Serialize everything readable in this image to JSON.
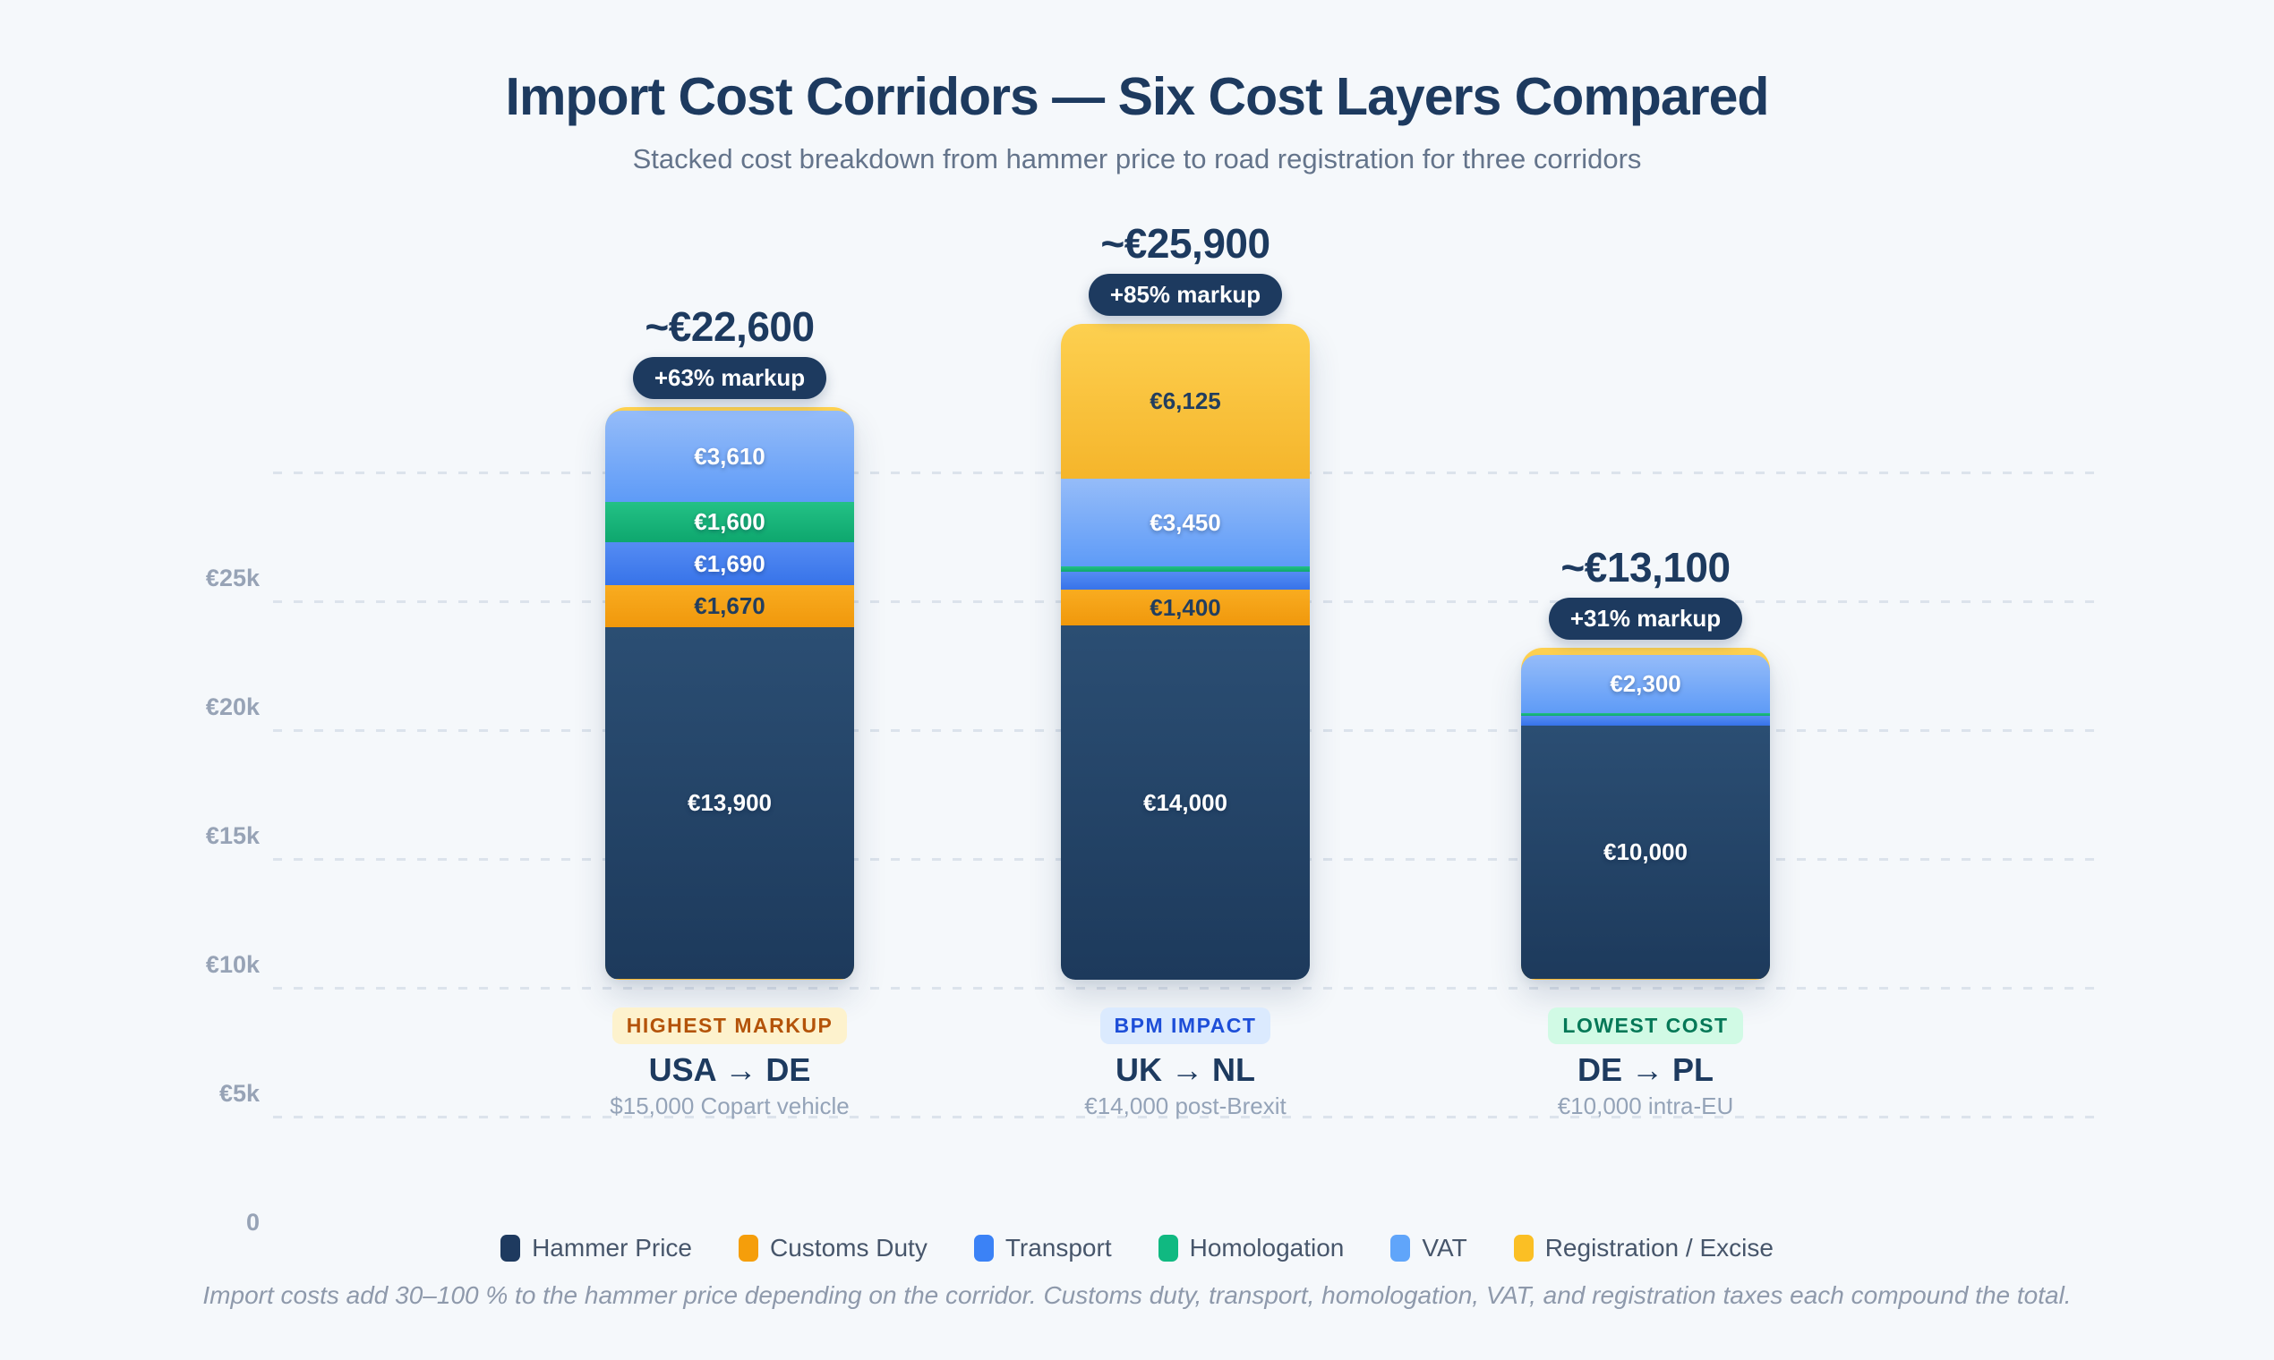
{
  "chart_data": {
    "type": "bar",
    "stacked": true,
    "title": "Import Cost Corridors — Six Cost Layers Compared",
    "subtitle": "Stacked cost breakdown from hammer price to road registration for three corridors",
    "currency": "EUR",
    "ylim": [
      0,
      30000
    ],
    "yticks": [
      "€25k",
      "€20k",
      "€15k",
      "€10k",
      "€5k",
      "0"
    ],
    "grid": "dashed-horizontal",
    "legend_position": "bottom",
    "layers": [
      {
        "key": "hammer",
        "name": "Hammer Price",
        "swatch": "#1e3a5f",
        "grad_top": "#2b4e73",
        "grad_bottom": "#1d3a5c",
        "label_tone": "light"
      },
      {
        "key": "customs",
        "name": "Customs Duty",
        "swatch": "#f59e0b",
        "grad_top": "#f9ac20",
        "grad_bottom": "#f0980c",
        "label_tone": "dark"
      },
      {
        "key": "transport",
        "name": "Transport",
        "swatch": "#3b82f6",
        "grad_top": "#558cf3",
        "grad_bottom": "#3773e9",
        "label_tone": "light"
      },
      {
        "key": "homologation",
        "name": "Homologation",
        "swatch": "#10b981",
        "grad_top": "#23c185",
        "grad_bottom": "#0ea76e",
        "label_tone": "light"
      },
      {
        "key": "vat",
        "name": "VAT",
        "swatch": "#60a5fa",
        "grad_top": "#95bcf9",
        "grad_bottom": "#5e9bf7",
        "label_tone": "light"
      },
      {
        "key": "registration",
        "name": "Registration / Excise",
        "swatch": "#fbbf24",
        "grad_top": "#fdd050",
        "grad_bottom": "#f5b52b",
        "label_tone": "dark"
      }
    ],
    "bars": [
      {
        "corridor": "USA → DE",
        "tag": "HIGHEST MARKUP",
        "tag_bg": "#fdf2cd",
        "tag_color": "#b45309",
        "desc": "$15,000 Copart vehicle",
        "total_label": "~€22,600",
        "markup_label": "+63% markup",
        "values": {
          "hammer": 13900,
          "customs": 1670,
          "transport": 1690,
          "homologation": 1600,
          "vat": 3610,
          "registration": 130
        },
        "segment_labels": {
          "hammer": "€13,900",
          "customs": "€1,670",
          "transport": "€1,690",
          "homologation": "€1,600",
          "vat": "€3,610"
        }
      },
      {
        "corridor": "UK → NL",
        "tag": "BPM IMPACT",
        "tag_bg": "#dbeafe",
        "tag_color": "#1d4ed8",
        "desc": "€14,000 post-Brexit",
        "total_label": "~€25,900",
        "markup_label": "+85% markup",
        "values": {
          "hammer": 14000,
          "customs": 1400,
          "transport": 700,
          "homologation": 225,
          "vat": 3450,
          "registration": 6125
        },
        "segment_labels": {
          "hammer": "€14,000",
          "customs": "€1,400",
          "vat": "€3,450",
          "registration": "€6,125"
        }
      },
      {
        "corridor": "DE → PL",
        "tag": "LOWEST COST",
        "tag_bg": "#d1fae5",
        "tag_color": "#047857",
        "desc": "€10,000 intra-EU",
        "total_label": "~€13,100",
        "markup_label": "+31% markup",
        "values": {
          "hammer": 10000,
          "customs": 0,
          "transport": 400,
          "homologation": 100,
          "vat": 2300,
          "registration": 300
        },
        "segment_labels": {
          "hammer": "€10,000",
          "vat": "€2,300"
        }
      }
    ],
    "footnote": "Import costs add 30–100 % to the hammer price depending on the corridor. Customs duty, transport, homologation, VAT, and registration taxes each compound the total.",
    "colors": {
      "background": "#f5f8fb",
      "title": "#1d3a5f",
      "subtitle": "#64748b",
      "axis_label": "#97a3b6",
      "gridline": "#dce3ec",
      "markup_badge_bg": "#1d3a5f",
      "markup_badge_text": "#ffffff",
      "corridor_title": "#1d3a5f",
      "corridor_desc": "#94a3b8",
      "footnote": "#8e99ab",
      "legend_text": "#47566b"
    }
  }
}
